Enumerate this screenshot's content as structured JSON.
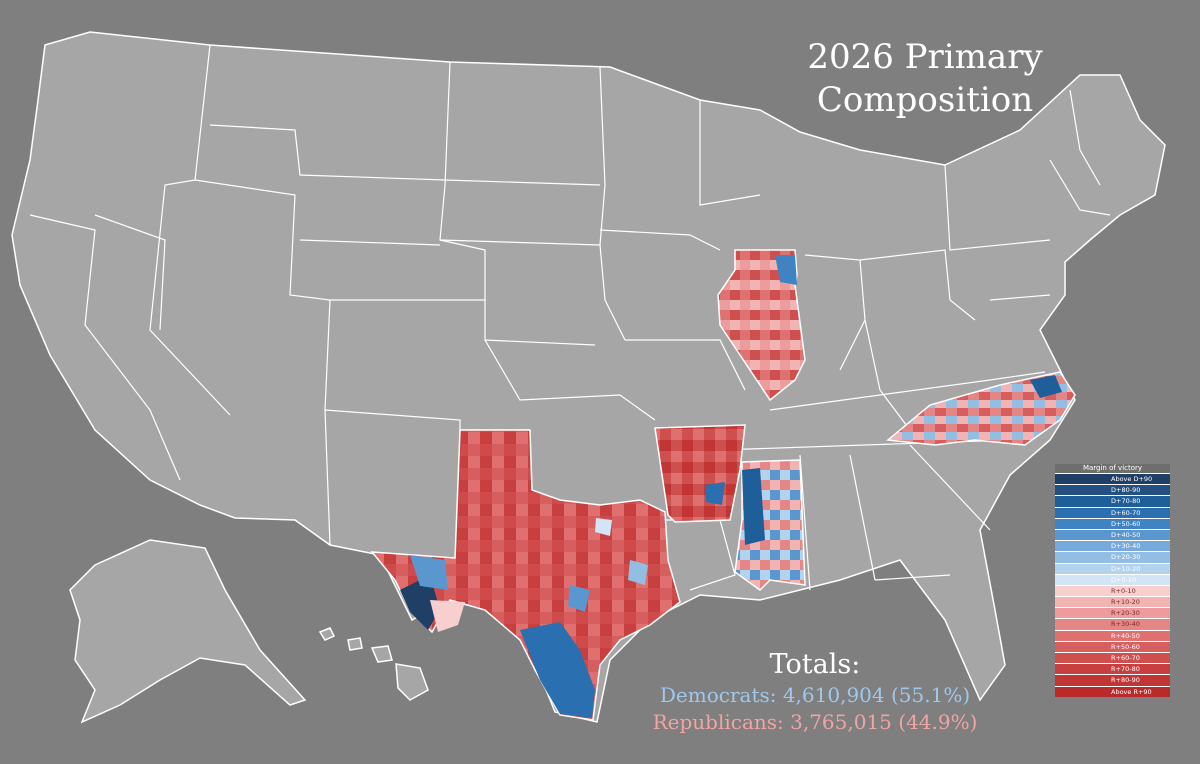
{
  "title": {
    "line1": "2026 Primary",
    "line2": "Composition"
  },
  "totals": {
    "heading": "Totals:",
    "democrats": "Democrats: 4,610,904 (55.1%)",
    "republicans": "Republicans: 3,765,015 (44.9%)"
  },
  "legend": {
    "title": "Margin of victory",
    "items": [
      {
        "label": "Above D+90",
        "color": "#1f3f66"
      },
      {
        "label": "D+80-90",
        "color": "#23507f"
      },
      {
        "label": "D+70-80",
        "color": "#1e5f99"
      },
      {
        "label": "D+60-70",
        "color": "#2a6fb0"
      },
      {
        "label": "D+50-60",
        "color": "#3f83c2"
      },
      {
        "label": "D+40-50",
        "color": "#5b97cf"
      },
      {
        "label": "D+30-40",
        "color": "#77aadb"
      },
      {
        "label": "D+20-30",
        "color": "#93bee4"
      },
      {
        "label": "D+10-20",
        "color": "#b3d2ee"
      },
      {
        "label": "D+0-10",
        "color": "#d3e4f5"
      },
      {
        "label": "R+0-10",
        "color": "#f7cfcf"
      },
      {
        "label": "R+10-20",
        "color": "#f2b3b3"
      },
      {
        "label": "R+20-30",
        "color": "#ec9c9c"
      },
      {
        "label": "R+30-40",
        "color": "#e58686"
      },
      {
        "label": "R+40-50",
        "color": "#de7070"
      },
      {
        "label": "R+50-60",
        "color": "#d65e5e"
      },
      {
        "label": "R+60-70",
        "color": "#cf4e4e"
      },
      {
        "label": "R+70-80",
        "color": "#c83f3f"
      },
      {
        "label": "R+80-90",
        "color": "#c13535"
      },
      {
        "label": "Above R+90",
        "color": "#b92b2b"
      }
    ]
  },
  "colors": {
    "background": "#7f7f7f",
    "land": "#a6a6a6",
    "border": "#ffffff",
    "democrats_text": "#9fc8ec",
    "republicans_text": "#f2a3a3"
  },
  "map": {
    "highlighted_states": [
      "Texas",
      "Illinois",
      "Arkansas",
      "Mississippi",
      "North Carolina"
    ]
  }
}
